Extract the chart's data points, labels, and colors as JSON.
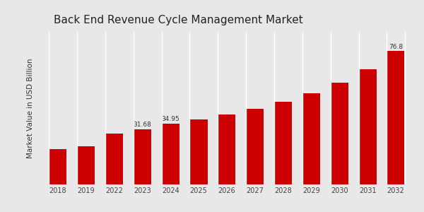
{
  "title": "Back End Revenue Cycle Management Market",
  "ylabel": "Market Value in USD Billion",
  "categories": [
    "2018",
    "2019",
    "2022",
    "2023",
    "2024",
    "2025",
    "2026",
    "2027",
    "2028",
    "2029",
    "2030",
    "2031",
    "2032"
  ],
  "values": [
    20.5,
    22.0,
    29.5,
    31.68,
    34.95,
    37.5,
    40.2,
    43.5,
    47.5,
    52.5,
    58.5,
    66.5,
    76.8
  ],
  "bar_color": "#CC0000",
  "background_color": "#e8e8e8",
  "title_fontsize": 11,
  "ylabel_fontsize": 7.5,
  "tick_fontsize": 7,
  "label_values": {
    "2023": "31.68",
    "2024": "34.95",
    "2032": "76.8"
  },
  "ylim": [
    0,
    88
  ],
  "bottom_bar_color": "#CC0000"
}
